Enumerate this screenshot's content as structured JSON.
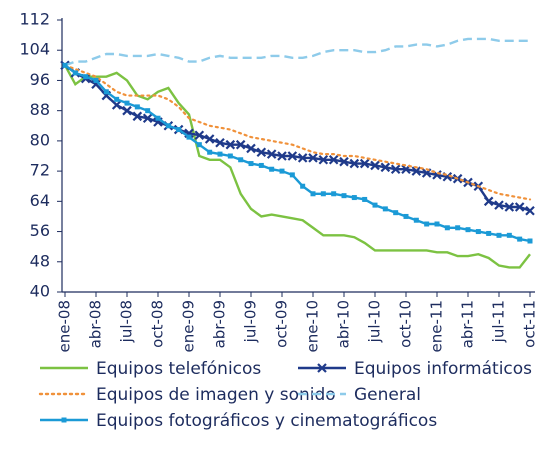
{
  "chart_data": {
    "type": "line",
    "categories": [
      "ene-08",
      null,
      null,
      "abr-08",
      null,
      null,
      "jul-08",
      null,
      null,
      "oct-08",
      null,
      null,
      "ene-09",
      null,
      null,
      "abr-09",
      null,
      null,
      "jul-09",
      null,
      null,
      "oct-09",
      null,
      null,
      "ene-10",
      null,
      null,
      "abr-10",
      null,
      null,
      "jul-10",
      null,
      null,
      "oct-10",
      null,
      null,
      "ene-11",
      null,
      null,
      "abr-11",
      null,
      null,
      "jul-11",
      null,
      null,
      "oct-11"
    ],
    "ylim": [
      40,
      112
    ],
    "yticks": [
      40,
      48,
      56,
      64,
      72,
      80,
      88,
      96,
      104,
      112
    ],
    "series": [
      {
        "name": "Equipos telefónicos",
        "color": "#7cc242",
        "style": "solid",
        "marker": "none",
        "values": [
          100,
          95,
          97,
          97,
          97,
          98,
          96,
          92,
          91,
          93,
          94,
          90,
          87,
          76,
          75,
          75,
          73,
          66,
          62,
          60,
          60.5,
          60,
          59.5,
          59,
          57,
          55,
          55,
          55,
          54.5,
          53,
          51,
          51,
          51,
          51,
          51,
          51,
          50.5,
          50.5,
          49.5,
          49.5,
          50,
          49,
          47,
          46.5,
          46.5,
          50
        ]
      },
      {
        "name": "Equipos informáticos",
        "color": "#1f3a8a",
        "style": "solid",
        "marker": "x",
        "values": [
          100,
          98,
          96.5,
          95,
          92,
          89.5,
          88,
          86.5,
          86,
          85,
          84,
          83,
          82,
          81.5,
          80.5,
          79.5,
          79,
          79,
          78,
          77,
          76.5,
          76,
          76,
          75.5,
          75.5,
          75,
          75,
          74.5,
          74,
          74,
          73.5,
          73,
          72.5,
          72.5,
          72,
          71.5,
          71,
          70.5,
          70,
          69,
          68,
          64,
          63,
          62.5,
          62.5,
          61.5
        ]
      },
      {
        "name": "Equipos de imagen y sonido",
        "color": "#f0913a",
        "style": "dotted",
        "marker": "none",
        "values": [
          100,
          99,
          98,
          97,
          95,
          93,
          92,
          92,
          92,
          92,
          91,
          89,
          86,
          85,
          84,
          83.5,
          83,
          82,
          81,
          80.5,
          80,
          79.5,
          79,
          78,
          77,
          76.5,
          76.5,
          76,
          76,
          75.5,
          75,
          74.5,
          74,
          73.5,
          73,
          72.5,
          71.5,
          71,
          70,
          69,
          68,
          67,
          66,
          65.5,
          65,
          64.5
        ]
      },
      {
        "name": "General",
        "color": "#8ecbea",
        "style": "dashed",
        "marker": "none",
        "values": [
          100,
          101,
          101,
          102,
          103,
          103,
          102.5,
          102.5,
          102.5,
          103,
          102.5,
          102,
          101,
          101,
          102,
          102.5,
          102,
          102,
          102,
          102,
          102.5,
          102.5,
          102,
          102,
          102.5,
          103.5,
          104,
          104,
          104,
          103.5,
          103.5,
          104,
          105,
          105,
          105.5,
          105.5,
          105,
          105.5,
          106.5,
          107,
          107,
          107,
          106.5,
          106.5,
          106.5,
          106.5
        ]
      },
      {
        "name": "Equipos fotográficos y cinematográficos",
        "color": "#1b9ad6",
        "style": "solid",
        "marker": "square",
        "values": [
          100,
          98,
          97,
          96,
          93,
          91,
          90,
          89,
          88,
          86,
          84,
          83,
          81,
          79,
          77,
          76.5,
          76,
          75,
          74,
          73.5,
          72.5,
          72,
          71,
          68,
          66,
          66,
          66,
          65.5,
          65,
          64.5,
          63,
          62,
          61,
          60,
          59,
          58,
          58,
          57,
          57,
          56.5,
          56,
          55.5,
          55,
          55,
          54,
          53.5
        ]
      }
    ]
  }
}
